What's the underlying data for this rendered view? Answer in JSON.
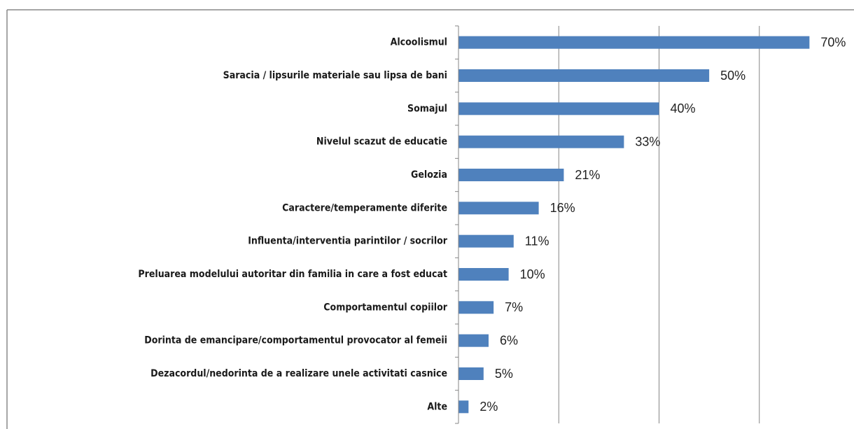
{
  "chart_data": {
    "type": "bar",
    "orientation": "horizontal",
    "categories": [
      "Alcoolismul",
      "Saracia / lipsurile materiale sau lipsa de bani",
      "Somajul",
      "Nivelul scazut de educatie",
      "Gelozia",
      "Caractere/temperamente diferite",
      "Influenta/interventia parintilor / socrilor",
      "Preluarea modelului autoritar din familia in care a fost educat",
      "Comportamentul copiilor",
      "Dorinta de emancipare/comportamentul provocator al femeii",
      "Dezacordul/nedorinta de a realizare unele activitati casnice",
      "Alte"
    ],
    "values": [
      70,
      50,
      40,
      33,
      21,
      16,
      11,
      10,
      7,
      6,
      5,
      2
    ],
    "value_labels": [
      "70%",
      "50%",
      "40%",
      "33%",
      "21%",
      "16%",
      "11%",
      "10%",
      "7%",
      "6%",
      "5%",
      "2%"
    ],
    "color": "#4f81bd",
    "xlim": [
      0,
      80
    ],
    "xticks": [
      0,
      20,
      40,
      60
    ],
    "grid": true
  }
}
